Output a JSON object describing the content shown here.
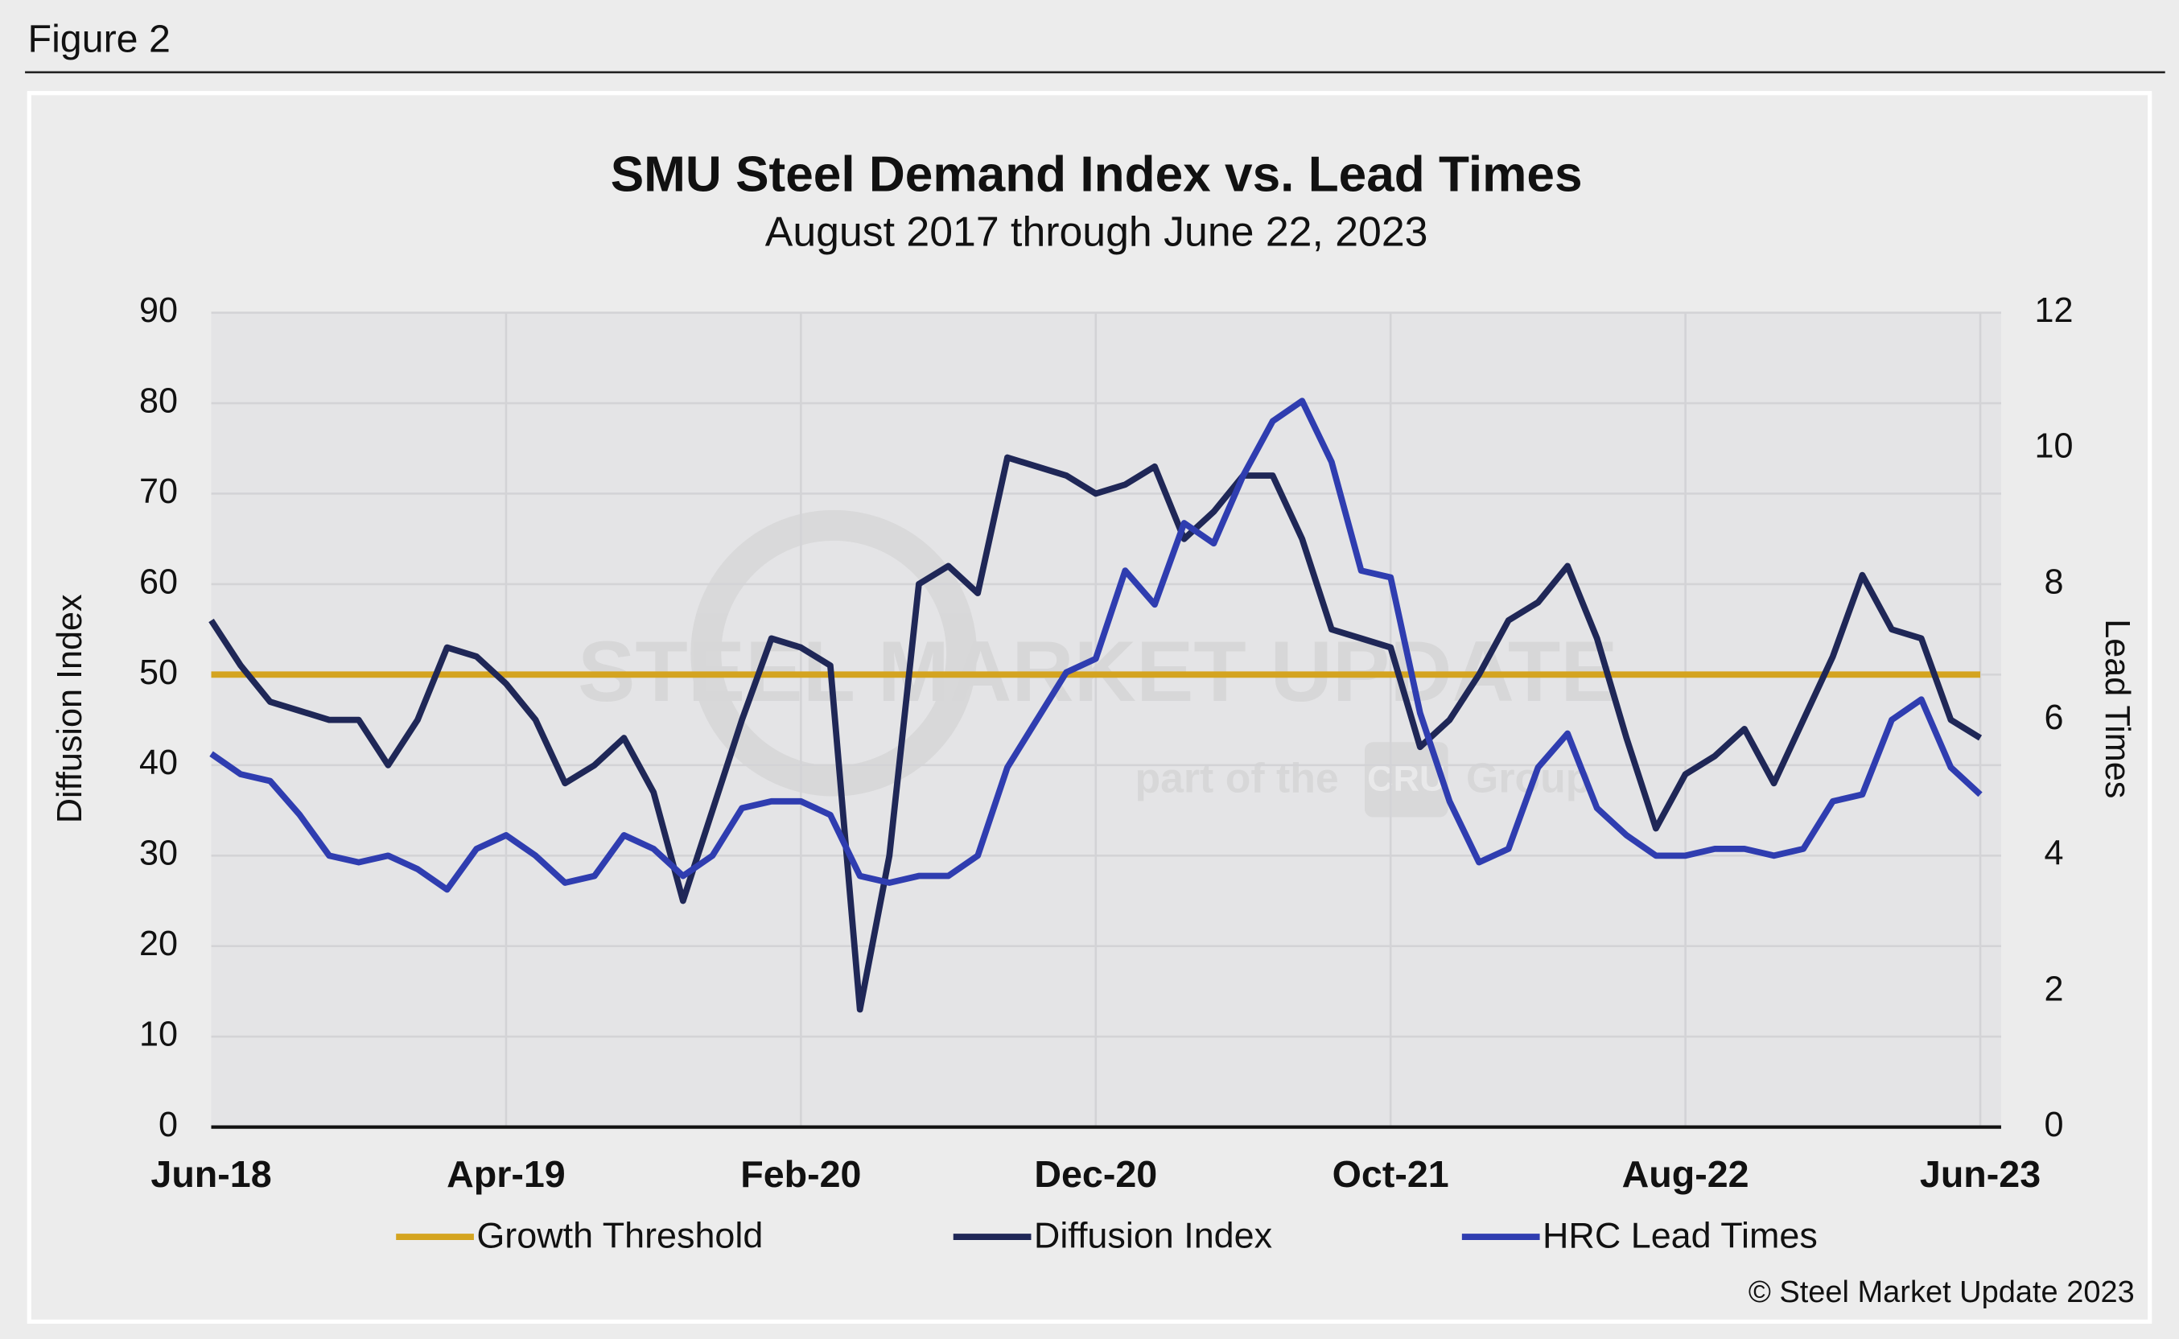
{
  "figure_label": "Figure 2",
  "copyright": "© Steel Market Update 2023",
  "watermark": [
    "STEEL MARKET UPDATE",
    "part of the",
    "CRU",
    "Group"
  ],
  "chart_data": {
    "type": "line",
    "title": "SMU Steel Demand Index vs. Lead Times",
    "subtitle": "August 2017 through June 22, 2023",
    "y_label": "Diffusion Index",
    "y2_label": "Lead Times",
    "categories": [
      "Jun-18",
      null,
      null,
      null,
      null,
      null,
      null,
      null,
      null,
      null,
      "Apr-19",
      null,
      null,
      null,
      null,
      null,
      null,
      null,
      null,
      null,
      "Feb-20",
      null,
      null,
      null,
      null,
      null,
      null,
      null,
      null,
      null,
      "Dec-20",
      null,
      null,
      null,
      null,
      null,
      null,
      null,
      null,
      null,
      "Oct-21",
      null,
      null,
      null,
      null,
      null,
      null,
      null,
      null,
      null,
      "Aug-22",
      null,
      null,
      null,
      null,
      null,
      null,
      null,
      null,
      null,
      "Jun-23"
    ],
    "ylim": [
      0,
      90
    ],
    "yticks": [
      0,
      10,
      20,
      30,
      40,
      50,
      60,
      70,
      80,
      90
    ],
    "y2lim": [
      0,
      12
    ],
    "y2ticks": [
      0,
      2,
      4,
      6,
      8,
      10,
      12
    ],
    "grid": true,
    "legend": "bottom",
    "series": [
      {
        "name": "Growth Threshold",
        "color": "#d4a420",
        "values": [
          50,
          50,
          50,
          50,
          50,
          50,
          50,
          50,
          50,
          50,
          50,
          50,
          50,
          50,
          50,
          50,
          50,
          50,
          50,
          50,
          50,
          50,
          50,
          50,
          50,
          50,
          50,
          50,
          50,
          50,
          50,
          50,
          50,
          50,
          50,
          50,
          50,
          50,
          50,
          50,
          50,
          50,
          50,
          50,
          50,
          50,
          50,
          50,
          50,
          50,
          50,
          50,
          50,
          50,
          50,
          50,
          50,
          50,
          50,
          50,
          50
        ]
      },
      {
        "name": "Diffusion Index",
        "color": "#1f2757",
        "values": [
          56,
          51,
          47,
          46,
          45,
          45,
          40,
          45,
          53,
          52,
          49,
          45,
          38,
          40,
          43,
          37,
          25,
          35,
          45,
          54,
          53,
          51,
          13,
          30,
          60,
          62,
          59,
          74,
          73,
          72,
          70,
          71,
          73,
          65,
          68,
          72,
          72,
          65,
          55,
          54,
          53,
          42,
          45,
          50,
          56,
          58,
          62,
          54,
          43,
          33,
          39,
          41,
          44,
          38,
          45,
          52,
          61,
          55,
          54,
          45,
          43
        ]
      },
      {
        "name": "HRC Lead Times",
        "color": "#2f3db0",
        "axis": "y2",
        "values": [
          5.5,
          5.2,
          5.1,
          4.6,
          4.0,
          3.9,
          4.0,
          3.8,
          3.5,
          4.1,
          4.3,
          4.0,
          3.6,
          3.7,
          4.3,
          4.1,
          3.7,
          4.0,
          4.7,
          4.8,
          4.8,
          4.6,
          3.7,
          3.6,
          3.7,
          3.7,
          4.0,
          5.3,
          6.0,
          6.7,
          6.9,
          8.2,
          7.7,
          8.9,
          8.6,
          9.6,
          10.4,
          10.7,
          9.8,
          8.2,
          8.1,
          6.1,
          4.8,
          3.9,
          4.1,
          5.3,
          5.8,
          4.7,
          4.3,
          4.0,
          4.0,
          4.1,
          4.1,
          4.0,
          4.1,
          4.8,
          4.9,
          6.0,
          6.3,
          5.3,
          4.9
        ]
      }
    ]
  }
}
